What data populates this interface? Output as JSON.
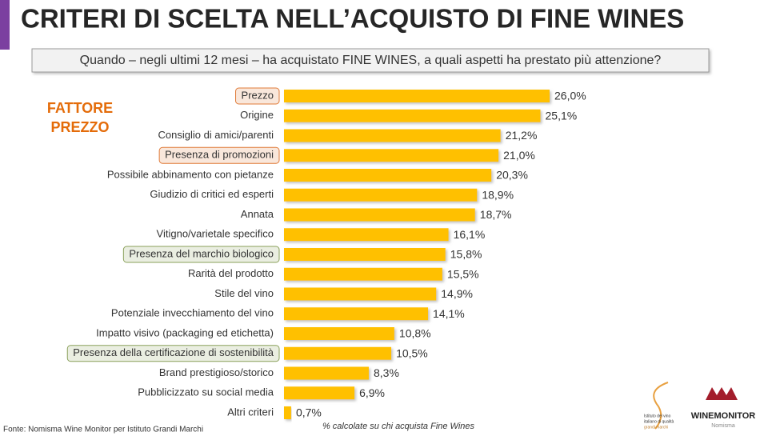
{
  "chart_data": {
    "type": "bar",
    "orientation": "horizontal",
    "title": "CRITERI DI SCELTA NELL’ACQUISTO DI FINE WINES",
    "subtitle": "Quando – negli ultimi 12 mesi – ha acquistato FINE WINES, a quali aspetti ha prestato più attenzione?",
    "annotation": [
      "FATTORE",
      "PREZZO"
    ],
    "categories": [
      "Prezzo",
      "Origine",
      "Consiglio di amici/parenti",
      "Presenza di promozioni",
      "Possibile abbinamento con pietanze",
      "Giudizio di critici ed esperti",
      "Annata",
      "Vitigno/varietale specifico",
      "Presenza del marchio biologico",
      "Rarità del prodotto",
      "Stile del vino",
      "Potenziale invecchiamento del vino",
      "Impatto visivo (packaging ed etichetta)",
      "Presenza della certificazione di sostenibilità",
      "Brand prestigioso/storico",
      "Pubblicizzato su social media",
      "Altri criteri"
    ],
    "values": [
      26.0,
      25.1,
      21.2,
      21.0,
      20.3,
      18.9,
      18.7,
      16.1,
      15.8,
      15.5,
      14.9,
      14.1,
      10.8,
      10.5,
      8.3,
      6.9,
      0.7
    ],
    "value_labels": [
      "26,0%",
      "25,1%",
      "21,2%",
      "21,0%",
      "20,3%",
      "18,9%",
      "18,7%",
      "16,1%",
      "15,8%",
      "15,5%",
      "14,9%",
      "14,1%",
      "10,8%",
      "10,5%",
      "8,3%",
      "6,9%",
      "0,7%"
    ],
    "color": "#FFC000",
    "label_box_colors": [
      "#E07B39",
      null,
      null,
      "#E07B39",
      null,
      null,
      null,
      null,
      "#8AA05A",
      null,
      null,
      null,
      null,
      "#8AA05A",
      null,
      null,
      null
    ],
    "note": "% calcolate su chi acquista Fine Wines",
    "source": "Fonte: Nomisma Wine Monitor per Istituto Grandi Marchi"
  },
  "logos": {
    "left": [
      "Istituto del vino",
      "italiano di qualità",
      "grandi marchi"
    ],
    "right": "WINEMONITOR",
    "right_sub": "Nomisma"
  }
}
